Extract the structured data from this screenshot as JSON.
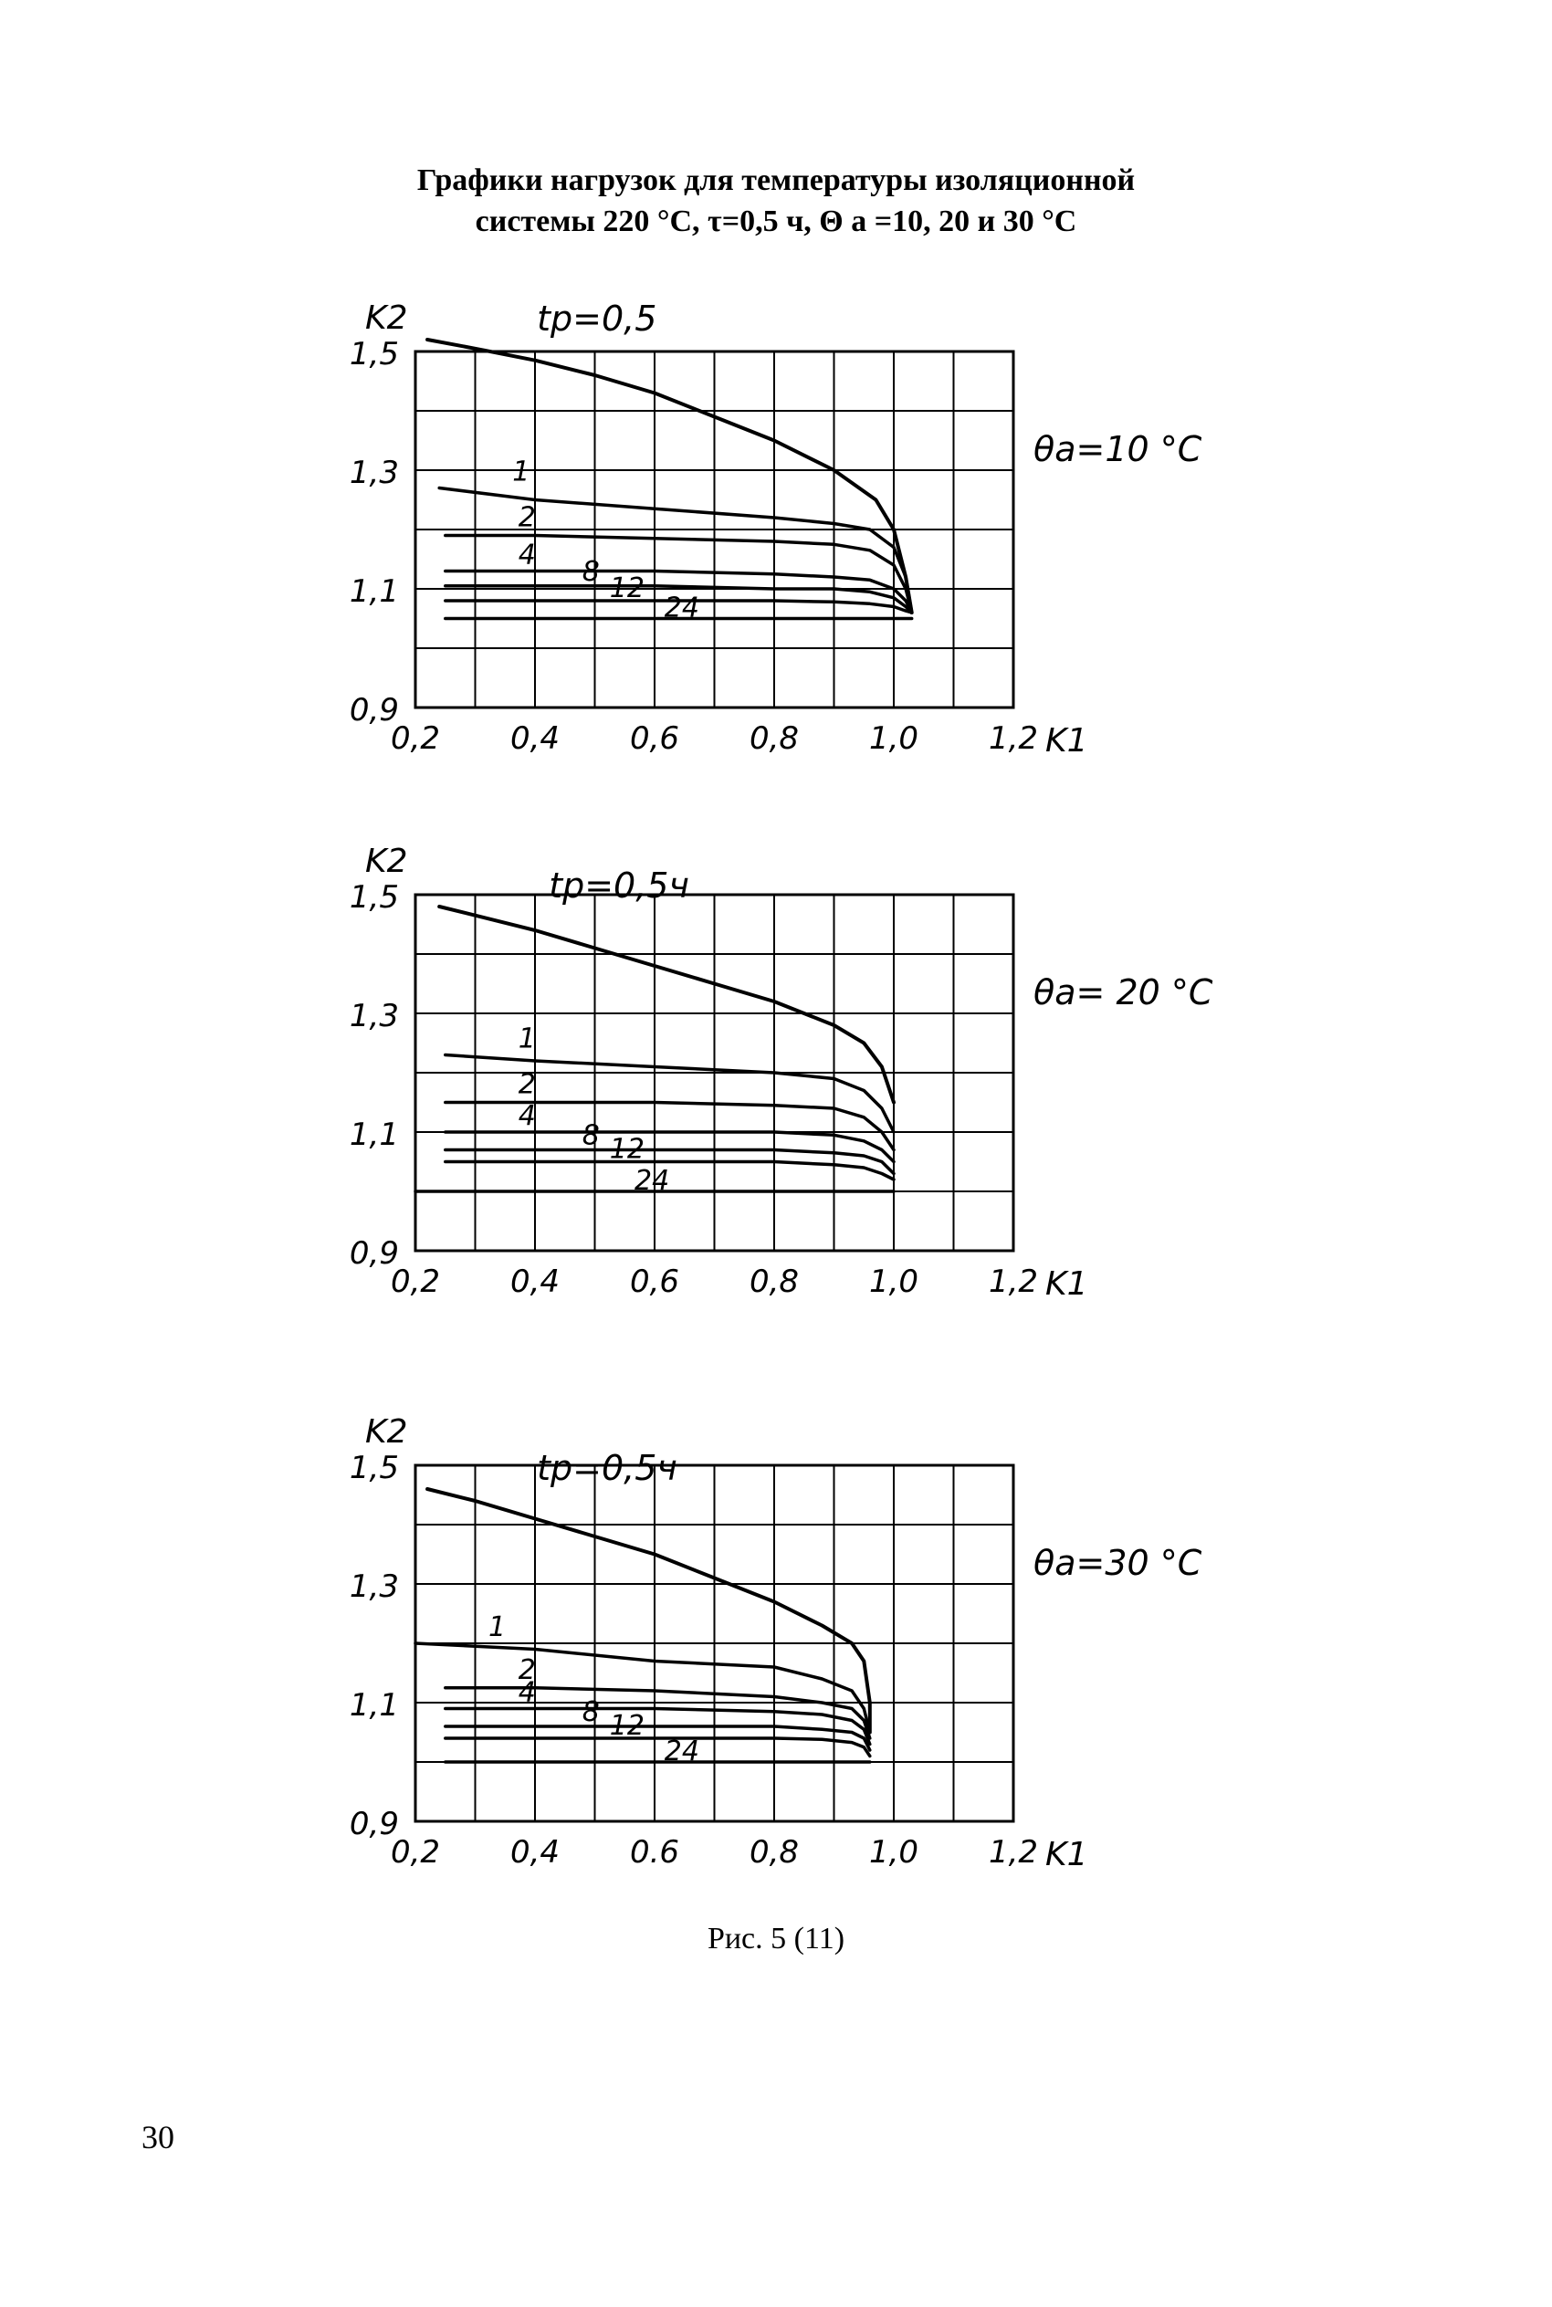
{
  "figure_title_lines": [
    "Графики нагрузок для температуры изоляционной",
    "системы 220 °С, τ=0,5 ч, Θ a =10, 20 и 30 °С"
  ],
  "caption": "Рис. 5 (11)",
  "page_number": "30",
  "chart_data": [
    {
      "type": "line",
      "title": "",
      "panel_label": "θa=10 °C",
      "ylabel": "K2",
      "xlabel": "K1",
      "x_tick_labels": [
        "0,2",
        "0,4",
        "0,6",
        "0,8",
        "1,0",
        "1,2"
      ],
      "y_tick_labels": [
        "1,5",
        "1,3",
        "1,1",
        "0,9"
      ],
      "xlim": [
        0.2,
        1.2
      ],
      "ylim": [
        0.9,
        1.5
      ],
      "grid": true,
      "series": [
        {
          "name": "tp=0,5",
          "x": [
            0.22,
            0.3,
            0.4,
            0.5,
            0.6,
            0.7,
            0.8,
            0.9,
            0.97,
            1.0,
            1.02,
            1.03
          ],
          "y": [
            1.52,
            1.505,
            1.485,
            1.46,
            1.43,
            1.39,
            1.35,
            1.3,
            1.25,
            1.2,
            1.12,
            1.06
          ]
        },
        {
          "name": "1",
          "x": [
            0.24,
            0.4,
            0.6,
            0.8,
            0.9,
            0.96,
            1.0,
            1.02,
            1.03
          ],
          "y": [
            1.27,
            1.25,
            1.235,
            1.22,
            1.21,
            1.2,
            1.17,
            1.12,
            1.06
          ]
        },
        {
          "name": "2",
          "x": [
            0.25,
            0.4,
            0.6,
            0.8,
            0.9,
            0.96,
            1.0,
            1.02,
            1.03
          ],
          "y": [
            1.19,
            1.19,
            1.185,
            1.18,
            1.175,
            1.165,
            1.14,
            1.1,
            1.06
          ]
        },
        {
          "name": "4",
          "x": [
            0.25,
            0.4,
            0.6,
            0.8,
            0.9,
            0.96,
            1.0,
            1.02,
            1.03
          ],
          "y": [
            1.13,
            1.13,
            1.13,
            1.125,
            1.12,
            1.115,
            1.1,
            1.08,
            1.06
          ]
        },
        {
          "name": "8",
          "x": [
            0.25,
            0.4,
            0.6,
            0.8,
            0.9,
            0.96,
            1.0,
            1.02,
            1.03
          ],
          "y": [
            1.105,
            1.105,
            1.105,
            1.1,
            1.1,
            1.095,
            1.085,
            1.07,
            1.06
          ]
        },
        {
          "name": "12",
          "x": [
            0.25,
            0.4,
            0.6,
            0.8,
            0.9,
            0.96,
            1.0,
            1.02,
            1.03
          ],
          "y": [
            1.08,
            1.08,
            1.08,
            1.08,
            1.078,
            1.075,
            1.07,
            1.063,
            1.06
          ]
        },
        {
          "name": "24",
          "x": [
            0.25,
            0.4,
            0.6,
            0.8,
            0.9,
            0.96,
            1.0,
            1.02,
            1.03
          ],
          "y": [
            1.05,
            1.05,
            1.05,
            1.05,
            1.05,
            1.05,
            1.05,
            1.05,
            1.05
          ]
        }
      ]
    },
    {
      "type": "line",
      "title": "",
      "panel_label": "θa= 20 °C",
      "ylabel": "K2",
      "xlabel": "K1",
      "x_tick_labels": [
        "0,2",
        "0,4",
        "0,6",
        "0,8",
        "1,0",
        "1,2"
      ],
      "y_tick_labels": [
        "1,5",
        "1,3",
        "1,1",
        "0,9"
      ],
      "xlim": [
        0.2,
        1.2
      ],
      "ylim": [
        0.9,
        1.5
      ],
      "grid": true,
      "series": [
        {
          "name": "tp=0,5ч",
          "x": [
            0.24,
            0.3,
            0.4,
            0.5,
            0.6,
            0.7,
            0.8,
            0.9,
            0.95,
            0.98,
            1.0
          ],
          "y": [
            1.48,
            1.465,
            1.44,
            1.41,
            1.38,
            1.35,
            1.32,
            1.28,
            1.25,
            1.21,
            1.15
          ]
        },
        {
          "name": "1",
          "x": [
            0.25,
            0.4,
            0.6,
            0.8,
            0.9,
            0.95,
            0.98,
            1.0
          ],
          "y": [
            1.23,
            1.22,
            1.21,
            1.2,
            1.19,
            1.17,
            1.14,
            1.1
          ]
        },
        {
          "name": "2",
          "x": [
            0.25,
            0.4,
            0.6,
            0.8,
            0.9,
            0.95,
            0.98,
            1.0
          ],
          "y": [
            1.15,
            1.15,
            1.15,
            1.145,
            1.14,
            1.125,
            1.1,
            1.07
          ]
        },
        {
          "name": "4",
          "x": [
            0.25,
            0.4,
            0.6,
            0.8,
            0.9,
            0.95,
            0.98,
            1.0
          ],
          "y": [
            1.1,
            1.1,
            1.1,
            1.1,
            1.095,
            1.085,
            1.07,
            1.05
          ]
        },
        {
          "name": "8",
          "x": [
            0.25,
            0.4,
            0.6,
            0.8,
            0.9,
            0.95,
            0.98,
            1.0
          ],
          "y": [
            1.07,
            1.07,
            1.07,
            1.07,
            1.065,
            1.06,
            1.05,
            1.03
          ]
        },
        {
          "name": "12",
          "x": [
            0.25,
            0.4,
            0.6,
            0.8,
            0.9,
            0.95,
            0.98,
            1.0
          ],
          "y": [
            1.05,
            1.05,
            1.05,
            1.05,
            1.045,
            1.04,
            1.03,
            1.02
          ]
        },
        {
          "name": "24",
          "x": [
            0.2,
            0.4,
            0.6,
            0.8,
            0.9,
            1.0
          ],
          "y": [
            1.0,
            1.0,
            1.0,
            1.0,
            1.0,
            1.0
          ]
        }
      ]
    },
    {
      "type": "line",
      "title": "",
      "panel_label": "θa=30 °C",
      "ylabel": "K2",
      "xlabel": "K1",
      "x_tick_labels": [
        "0,2",
        "0,4",
        "0.6",
        "0,8",
        "1,0",
        "1,2"
      ],
      "y_tick_labels": [
        "1,5",
        "1,3",
        "1,1",
        "0,9"
      ],
      "xlim": [
        0.2,
        1.2
      ],
      "ylim": [
        0.9,
        1.5
      ],
      "grid": true,
      "series": [
        {
          "name": "tp=0,5ч",
          "x": [
            0.22,
            0.3,
            0.4,
            0.5,
            0.6,
            0.7,
            0.8,
            0.88,
            0.93,
            0.95,
            0.96,
            0.96
          ],
          "y": [
            1.46,
            1.44,
            1.41,
            1.38,
            1.35,
            1.31,
            1.27,
            1.23,
            1.2,
            1.17,
            1.1,
            1.05
          ]
        },
        {
          "name": "1",
          "x": [
            0.2,
            0.4,
            0.6,
            0.8,
            0.88,
            0.93,
            0.95,
            0.96
          ],
          "y": [
            1.2,
            1.19,
            1.17,
            1.16,
            1.14,
            1.12,
            1.09,
            1.05
          ]
        },
        {
          "name": "2",
          "x": [
            0.25,
            0.4,
            0.6,
            0.8,
            0.88,
            0.93,
            0.95,
            0.96
          ],
          "y": [
            1.125,
            1.125,
            1.12,
            1.11,
            1.1,
            1.09,
            1.07,
            1.04
          ]
        },
        {
          "name": "4",
          "x": [
            0.25,
            0.4,
            0.6,
            0.8,
            0.88,
            0.93,
            0.95,
            0.96
          ],
          "y": [
            1.09,
            1.09,
            1.09,
            1.085,
            1.08,
            1.07,
            1.055,
            1.03
          ]
        },
        {
          "name": "8",
          "x": [
            0.25,
            0.4,
            0.6,
            0.8,
            0.88,
            0.93,
            0.95,
            0.96
          ],
          "y": [
            1.06,
            1.06,
            1.06,
            1.06,
            1.055,
            1.05,
            1.04,
            1.02
          ]
        },
        {
          "name": "12",
          "x": [
            0.25,
            0.4,
            0.6,
            0.8,
            0.88,
            0.93,
            0.95,
            0.96
          ],
          "y": [
            1.04,
            1.04,
            1.04,
            1.04,
            1.038,
            1.033,
            1.025,
            1.01
          ]
        },
        {
          "name": "24",
          "x": [
            0.25,
            0.4,
            0.6,
            0.8,
            0.9,
            0.96
          ],
          "y": [
            1.0,
            1.0,
            1.0,
            1.0,
            1.0,
            1.0
          ]
        }
      ]
    }
  ]
}
